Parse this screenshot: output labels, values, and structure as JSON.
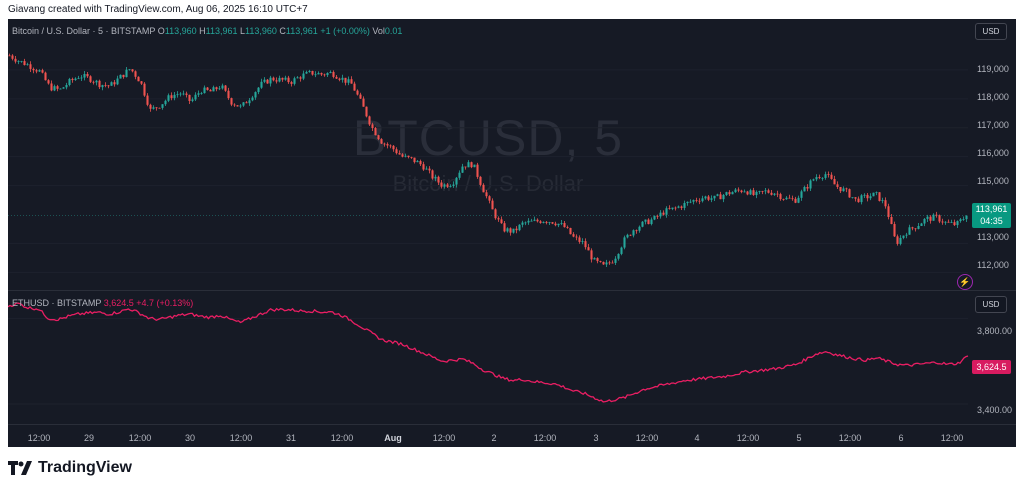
{
  "header": {
    "text": "Giavang created with TradingView.com, Aug 06, 2025 16:10 UTC+7"
  },
  "watermark": {
    "symbol": "BTCUSD, 5",
    "name": "Bitcoin / U.S. Dollar"
  },
  "btc": {
    "title": "Bitcoin / U.S. Dollar · 5 · BITSTAMP",
    "o_label": "O",
    "o": "113,960",
    "h_label": "H",
    "h": "113,961",
    "l_label": "L",
    "l": "113,960",
    "c_label": "C",
    "c": "113,961",
    "change": "+1 (+0.00%)",
    "vol_label": "Vol",
    "vol": "0.01",
    "currency": "USD",
    "y_ticks": [
      "119,000",
      "118,000",
      "117,000",
      "116,000",
      "115,000",
      "113,000",
      "112,000"
    ],
    "last_price": "113,961",
    "countdown": "04:35"
  },
  "eth": {
    "title": "ETHUSD · BITSTAMP",
    "price": "3,624.5",
    "change": "+4.7 (+0.13%)",
    "currency": "USD",
    "y_ticks": [
      "3,800.00",
      "3,400.00"
    ],
    "last_price": "3,624.5"
  },
  "x_ticks": [
    "12:00",
    "29",
    "12:00",
    "30",
    "12:00",
    "31",
    "12:00",
    "Aug",
    "12:00",
    "2",
    "12:00",
    "3",
    "12:00",
    "4",
    "12:00",
    "5",
    "12:00",
    "6",
    "12:00"
  ],
  "brand": {
    "name": "TradingView"
  },
  "colors": {
    "up": "#26a69a",
    "down": "#ef5350",
    "eth": "#e91e63",
    "background": "#161a25"
  },
  "chart_data": [
    {
      "type": "candlestick",
      "title": "Bitcoin / U.S. Dollar · 5 · BITSTAMP",
      "x_labels": [
        "12:00",
        "29",
        "12:00",
        "30",
        "12:00",
        "31",
        "12:00",
        "Aug",
        "12:00",
        "2",
        "12:00",
        "3",
        "12:00",
        "4",
        "12:00",
        "5",
        "12:00",
        "6",
        "12:00"
      ],
      "ylim": [
        111700,
        120000
      ],
      "close_path": [
        119500,
        119300,
        119150,
        118950,
        118400,
        118300,
        118600,
        118800,
        118700,
        118500,
        118450,
        118750,
        119050,
        118600,
        117600,
        117800,
        118100,
        118200,
        117900,
        118300,
        118250,
        118450,
        117900,
        117700,
        118100,
        118500,
        118700,
        118650,
        118600,
        118800,
        118900,
        118850,
        118900,
        118700,
        118500,
        117800,
        117000,
        116500,
        116300,
        116000,
        115900,
        115700,
        115300,
        115000,
        115100,
        115700,
        115750,
        114900,
        114100,
        113500,
        113400,
        113700,
        113750,
        113800,
        113750,
        113600,
        113200,
        113000,
        112400,
        112200,
        112450,
        113100,
        113500,
        113700,
        113850,
        114100,
        114200,
        114350,
        114500,
        114600,
        114550,
        114700,
        114800,
        114850,
        114650,
        114800,
        114750,
        114550,
        114500,
        114900,
        115300,
        115400,
        115000,
        114800,
        114500,
        114600,
        114700,
        114300,
        113000,
        113400,
        113600,
        113850,
        113900,
        113700,
        113650,
        113961
      ],
      "last": 113961
    },
    {
      "type": "line",
      "title": "ETHUSD · BITSTAMP",
      "series": [
        {
          "name": "ETHUSD",
          "values": [
            3858,
            3870,
            3850,
            3845,
            3800,
            3795,
            3810,
            3820,
            3825,
            3828,
            3820,
            3830,
            3845,
            3825,
            3800,
            3795,
            3805,
            3815,
            3820,
            3810,
            3805,
            3815,
            3795,
            3780,
            3800,
            3820,
            3840,
            3842,
            3840,
            3835,
            3835,
            3830,
            3830,
            3815,
            3790,
            3760,
            3730,
            3700,
            3690,
            3680,
            3660,
            3640,
            3620,
            3600,
            3605,
            3610,
            3590,
            3560,
            3540,
            3520,
            3510,
            3515,
            3505,
            3500,
            3495,
            3480,
            3460,
            3450,
            3430,
            3410,
            3420,
            3430,
            3450,
            3470,
            3480,
            3490,
            3500,
            3510,
            3515,
            3520,
            3525,
            3530,
            3540,
            3550,
            3555,
            3560,
            3565,
            3575,
            3585,
            3610,
            3635,
            3645,
            3630,
            3620,
            3610,
            3605,
            3615,
            3600,
            3585,
            3580,
            3585,
            3590,
            3595,
            3585,
            3590,
            3624.5
          ]
        }
      ],
      "ylim": [
        3330,
        3900
      ],
      "last": 3624.5
    }
  ]
}
